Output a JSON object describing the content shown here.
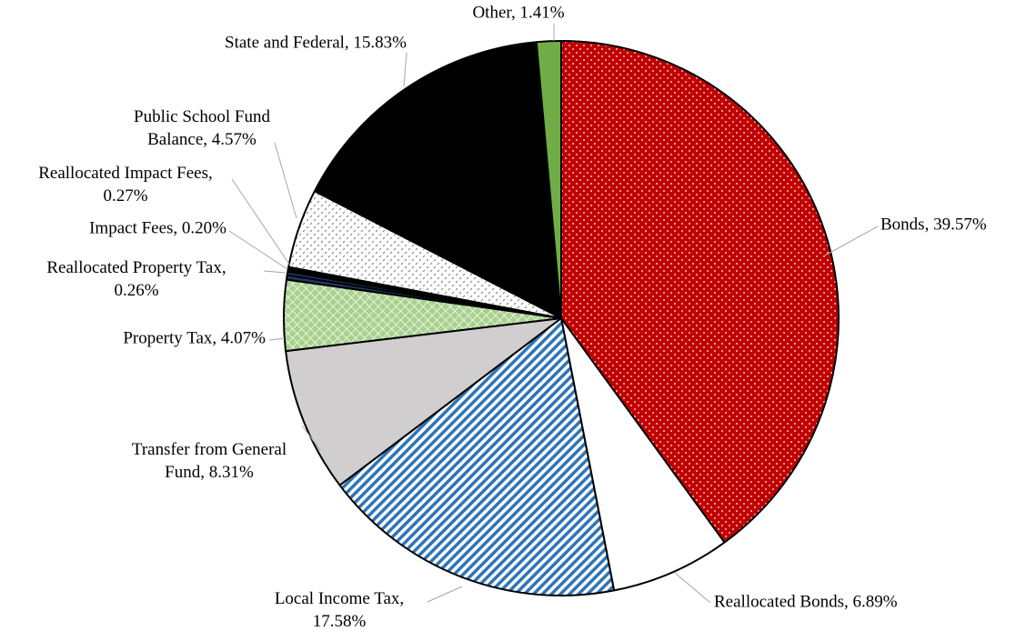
{
  "chart_data": {
    "type": "pie",
    "values": [
      39.57,
      6.89,
      17.58,
      8.31,
      4.07,
      0.26,
      0.2,
      0.27,
      4.57,
      15.83,
      1.41
    ],
    "value_labels": [
      "Bonds, 39.57%",
      "Reallocated Bonds, 6.89%",
      "Local Income Tax, 17.58%",
      "Transfer from General Fund, 8.31%",
      "Property Tax, 4.07%",
      "Reallocated Property Tax, 0.26%",
      "Impact Fees, 0.20%",
      "Reallocated Impact Fees, 0.27%",
      "Public School Fund Balance, 4.57%",
      "State and Federal, 15.83%",
      "Other, 1.41%"
    ],
    "colors": [
      "#c00000",
      "#ffffff",
      "#2e75b6",
      "#d0cece",
      "#a9d18e",
      "#1f3864",
      "#203864",
      "#000000",
      "#ffffff",
      "#000000",
      "#70ad47"
    ]
  }
}
